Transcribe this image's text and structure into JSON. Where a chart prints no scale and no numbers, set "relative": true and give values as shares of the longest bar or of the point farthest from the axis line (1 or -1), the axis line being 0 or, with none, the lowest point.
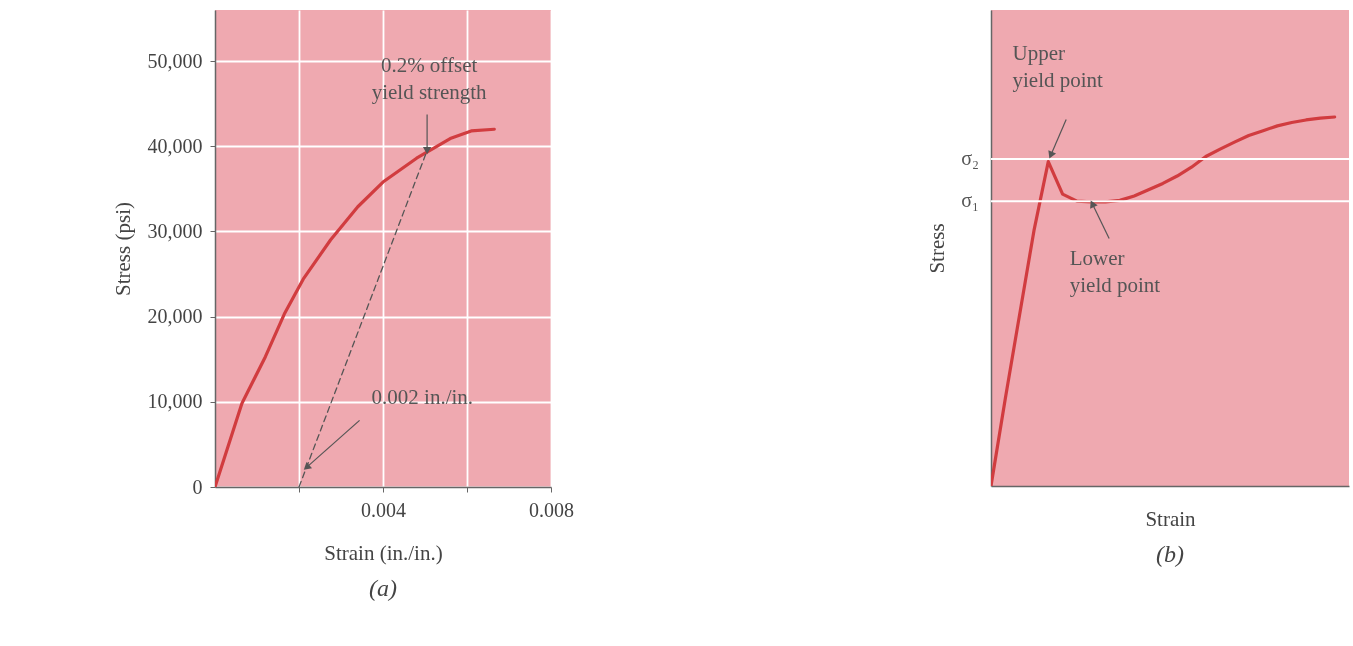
{
  "chart_data": [
    {
      "type": "line",
      "title": "(a)",
      "xlabel": "Strain (in./in.)",
      "ylabel": "Stress (psi)",
      "xlim": [
        0,
        0.008
      ],
      "ylim": [
        0,
        56000
      ],
      "xticks": [
        {
          "value": 0.002,
          "label": null
        },
        0.004,
        {
          "value": 0.006,
          "label": null
        },
        0.008
      ],
      "yticks": [
        0,
        {
          "value": 10000,
          "label": "10,000"
        },
        {
          "value": 20000,
          "label": "20,000"
        },
        {
          "value": 30000,
          "label": "30,000"
        },
        {
          "value": 40000,
          "label": "40,000"
        },
        {
          "value": 50000,
          "label": "50,000"
        }
      ],
      "grid": true,
      "series": [
        {
          "color": "#d13c3f",
          "x": [
            0,
            0.00064,
            0.0012,
            0.00165,
            0.0021,
            0.00275,
            0.0034,
            0.004,
            0.0048,
            0.0056,
            0.0061,
            0.00665
          ],
          "values": [
            0,
            9800,
            15300,
            20300,
            24400,
            29000,
            32900,
            35800,
            38600,
            40900,
            41800,
            42000
          ]
        },
        {
          "color": "#555555",
          "line_style": "dashed",
          "x": [
            0.002,
            0.00505
          ],
          "values": [
            0,
            39500
          ]
        }
      ],
      "annotations": [
        {
          "text": "0.2% offset\nyield strength",
          "x": 0.00505,
          "y": 39500
        },
        {
          "text": "0.002 in./in.",
          "x": 0.00218,
          "y": 2300
        }
      ]
    },
    {
      "type": "line",
      "title": "(b)",
      "xlabel": "Strain",
      "ylabel": "Stress",
      "relative": true,
      "categories": [
        null,
        null,
        null,
        null,
        null,
        null,
        null,
        null,
        null,
        null,
        null,
        null,
        null,
        null,
        null,
        null,
        null,
        null,
        null,
        null,
        null,
        null,
        null,
        null,
        null,
        null
      ],
      "series": [
        {
          "color": "#d13c3f",
          "values": [
            0,
            0.237,
            0.465,
            0.692,
            0.879,
            0.791,
            0.772,
            0.77,
            0.77,
            0.774,
            0.786,
            0.803,
            0.82,
            0.84,
            0.864,
            0.893,
            0.913,
            0.932,
            0.95,
            0.963,
            0.976,
            0.985,
            0.992,
            0.997,
            1,
            null
          ]
        }
      ],
      "ref_lines": [
        {
          "axis": "y",
          "value": 0.886,
          "label": "σ₂",
          "color": "#ffffff"
        },
        {
          "axis": "y",
          "value": 0.772,
          "label": "σ₁",
          "color": "#ffffff"
        }
      ],
      "annotations": [
        "Upper\nyield point",
        "Lower\nyield point"
      ]
    }
  ]
}
